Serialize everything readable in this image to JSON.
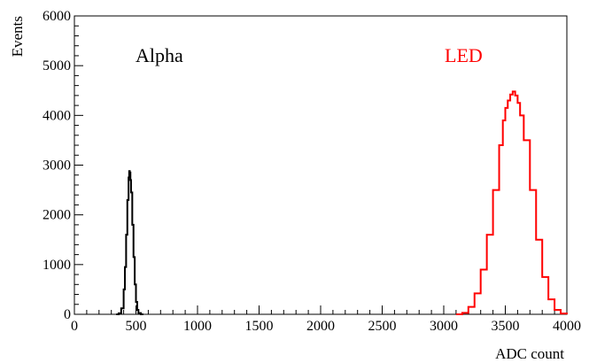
{
  "chart_data": {
    "type": "line",
    "title": "",
    "xlabel": "ADC count",
    "ylabel": "Events",
    "xlim": [
      0,
      4000
    ],
    "ylim": [
      0,
      6000
    ],
    "x_ticks": [
      0,
      500,
      1000,
      1500,
      2000,
      2500,
      3000,
      3500,
      4000
    ],
    "y_ticks": [
      0,
      1000,
      2000,
      3000,
      4000,
      5000,
      6000
    ],
    "grid": false,
    "annotations": [
      {
        "text": "Alpha",
        "color": "#000000"
      },
      {
        "text": "LED",
        "color": "#ff0000"
      }
    ],
    "series": [
      {
        "name": "Alpha",
        "color": "#000000",
        "x": [
          340,
          360,
          380,
          400,
          410,
          420,
          430,
          440,
          445,
          450,
          455,
          460,
          470,
          480,
          490,
          500,
          510,
          520,
          540,
          560
        ],
        "y": [
          0,
          20,
          120,
          500,
          950,
          1600,
          2300,
          2750,
          2880,
          2850,
          2700,
          2450,
          1800,
          1150,
          600,
          250,
          90,
          25,
          0,
          0
        ]
      },
      {
        "name": "LED",
        "color": "#ff0000",
        "x": [
          3100,
          3150,
          3200,
          3250,
          3300,
          3350,
          3400,
          3450,
          3480,
          3500,
          3520,
          3540,
          3560,
          3580,
          3600,
          3620,
          3650,
          3700,
          3750,
          3800,
          3850,
          3900,
          3950,
          4000
        ],
        "y": [
          0,
          30,
          150,
          420,
          900,
          1600,
          2500,
          3400,
          3900,
          4150,
          4300,
          4420,
          4480,
          4400,
          4250,
          4000,
          3500,
          2500,
          1500,
          750,
          300,
          90,
          15,
          0
        ]
      }
    ]
  }
}
